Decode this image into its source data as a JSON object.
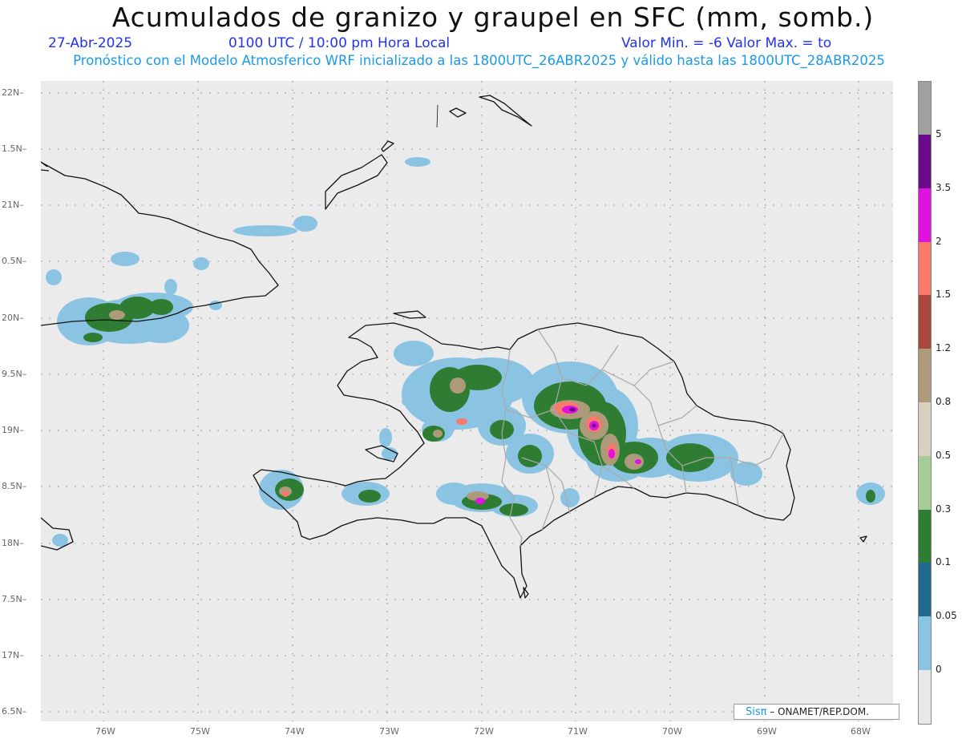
{
  "header": {
    "title": "Acumulados de granizo y graupel en SFC (mm, somb.)",
    "date": "27-Abr-2025",
    "time": "0100 UTC / 10:00 pm Hora Local",
    "minmax": "Valor Min. = -6  Valor Max. = to",
    "subtitle": "Pronóstico con el Modelo Atmosferico WRF inicializado a las 1800UTC_26ABR2025 y válido hasta las  1800UTC_28ABR2025"
  },
  "axes": {
    "lat_labels": [
      "22N",
      "1.5N",
      "21N",
      "0.5N",
      "20N",
      "9.5N",
      "19N",
      "8.5N",
      "18N",
      "7.5N",
      "17N",
      "6.5N"
    ],
    "lon_labels": [
      "76W",
      "75W",
      "74W",
      "73W",
      "72W",
      "71W",
      "70W",
      "69W",
      "68W"
    ]
  },
  "legend": {
    "labels": [
      "5",
      "3.5",
      "2",
      "1.5",
      "1.2",
      "0.8",
      "0.5",
      "0.3",
      "0.1",
      "0.05",
      "0"
    ],
    "colors": {
      "top": "#a0a0a0",
      "bands": [
        "#6a0a8c",
        "#e012e0",
        "#f77a6a",
        "#a8473a",
        "#ad9a7a",
        "#d9cfbf",
        "#a6cc98",
        "#2f7d33",
        "#1f6a8e",
        "#8bc4e3"
      ],
      "bottom": "#e8e8e8"
    }
  },
  "credit": {
    "brand": "Sisπ",
    "text": " – ONAMET/REP.DOM."
  }
}
